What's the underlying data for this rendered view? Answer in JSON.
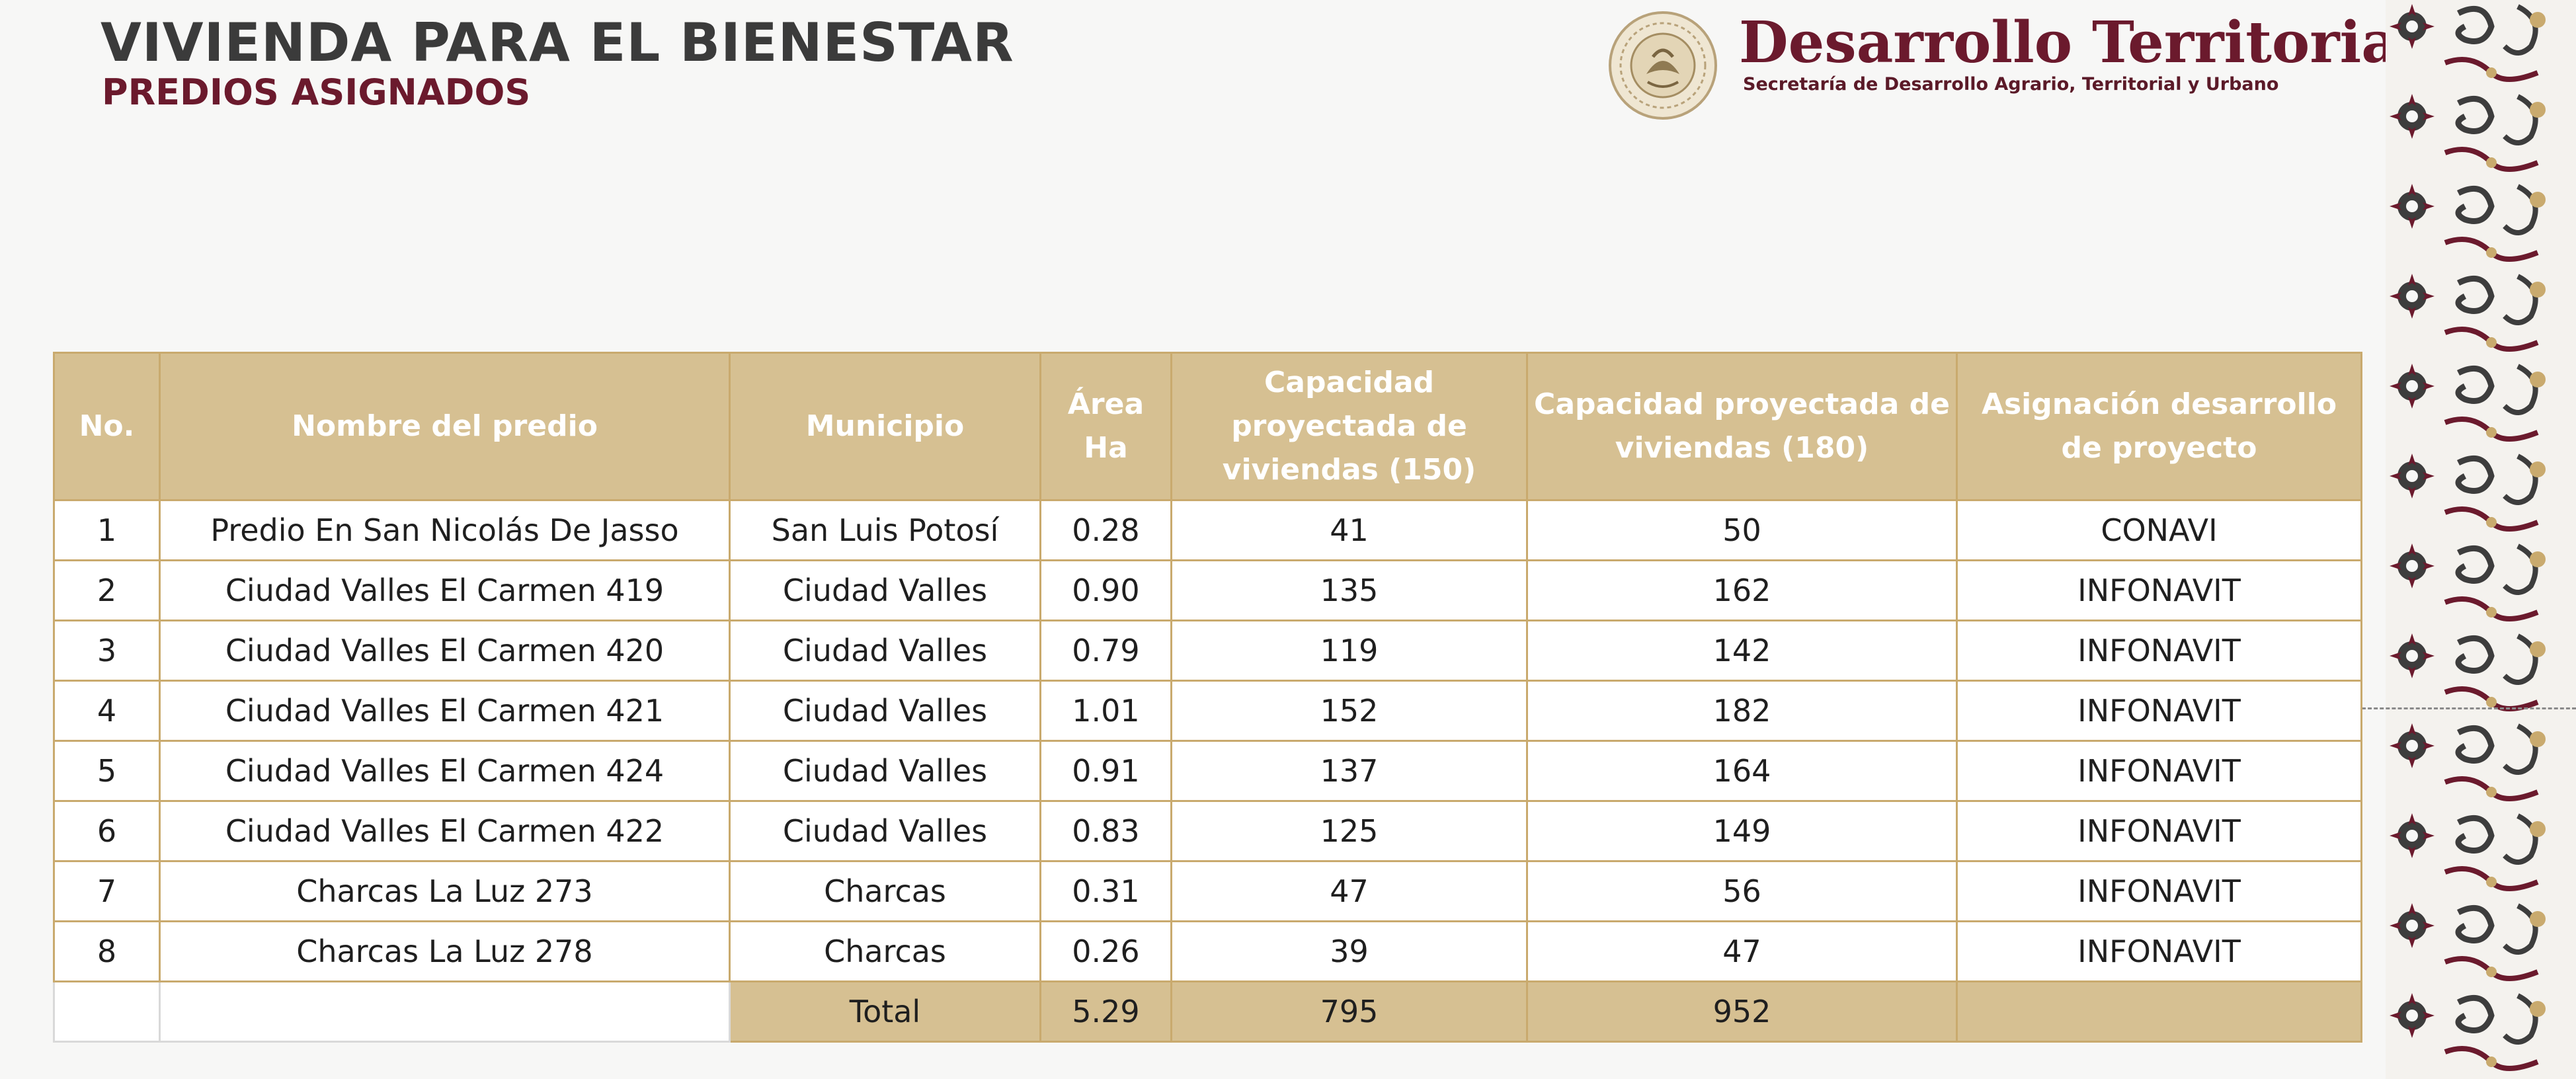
{
  "header": {
    "title": "VIVIENDA PARA EL BIENESTAR",
    "subtitle": "PREDIOS ASIGNADOS"
  },
  "brand": {
    "title": "Desarrollo Territorial",
    "subtitle": "Secretaría de Desarrollo Agrario, Territorial y Urbano",
    "color": "#6b1a2d",
    "seal_icon": "mexico-coat-of-arms-seal"
  },
  "table": {
    "headers": [
      "No.",
      "Nombre del predio",
      "Municipio",
      "Área Ha",
      "Capacidad proyectada de viviendas (150)",
      "Capacidad proyectada de viviendas (180)",
      "Asignación desarrollo de proyecto"
    ],
    "rows": [
      [
        "1",
        "Predio En San Nicolás De Jasso",
        "San Luis Potosí",
        "0.28",
        "41",
        "50",
        "CONAVI"
      ],
      [
        "2",
        "Ciudad Valles El Carmen 419",
        "Ciudad Valles",
        "0.90",
        "135",
        "162",
        "INFONAVIT"
      ],
      [
        "3",
        "Ciudad Valles El Carmen 420",
        "Ciudad Valles",
        "0.79",
        "119",
        "142",
        "INFONAVIT"
      ],
      [
        "4",
        "Ciudad Valles El Carmen 421",
        "Ciudad Valles",
        "1.01",
        "152",
        "182",
        "INFONAVIT"
      ],
      [
        "5",
        "Ciudad Valles El Carmen 424",
        "Ciudad Valles",
        "0.91",
        "137",
        "164",
        "INFONAVIT"
      ],
      [
        "6",
        "Ciudad Valles El Carmen 422",
        "Ciudad Valles",
        "0.83",
        "125",
        "149",
        "INFONAVIT"
      ],
      [
        "7",
        "Charcas La Luz 273",
        "Charcas",
        "0.31",
        "47",
        "56",
        "INFONAVIT"
      ],
      [
        "8",
        "Charcas La Luz 278",
        "Charcas",
        "0.26",
        "39",
        "47",
        "INFONAVIT"
      ]
    ],
    "total": {
      "label": "Total",
      "area": "5.29",
      "cap150": "795",
      "cap180": "952"
    },
    "header_color": "#d6c092",
    "border_color": "#c9aa6e"
  },
  "decoration": {
    "border_icon": "floral-border-pattern",
    "colors": [
      "#3d3d3d",
      "#6b1a2d",
      "#c9aa6e"
    ]
  }
}
